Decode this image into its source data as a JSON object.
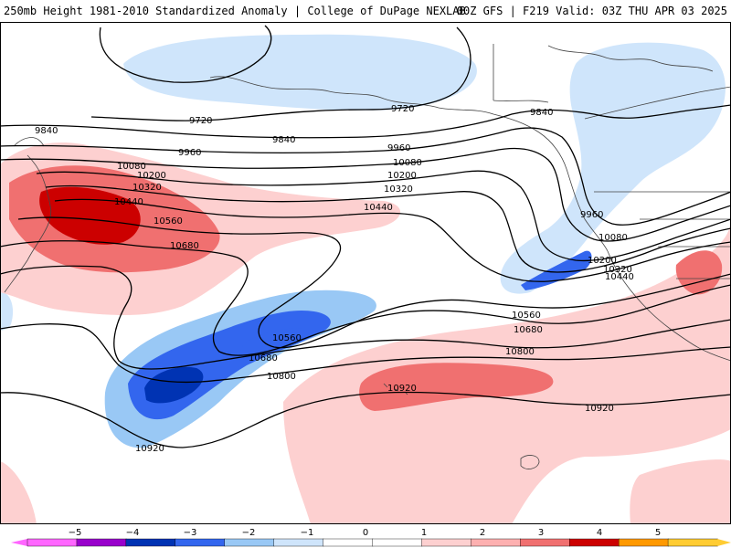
{
  "header": {
    "title_left": "250mb Height 1981-2010 Standardized Anomaly | College of DuPage NEXLAB",
    "title_right": "00Z GFS | F219 Valid: 03Z THU APR 03 2025"
  },
  "colors": {
    "neg5": "#ff66ff",
    "neg4": "#9900cc",
    "neg3": "#0033b3",
    "neg2": "#3366ee",
    "neg1": "#99c8f5",
    "neg05": "#cfe5fb",
    "pos05": "#fdd0d0",
    "pos1": "#fdb0b0",
    "pos2": "#f07070",
    "pos3": "#cc0000",
    "pos4": "#ff9900",
    "pos5": "#ffcc33",
    "contour": "#000000",
    "coast": "#333333"
  },
  "contour_labels": [
    {
      "id": "c9720a",
      "text": "9720"
    },
    {
      "id": "c9720b",
      "text": "9720"
    },
    {
      "id": "c9840a",
      "text": "9840"
    },
    {
      "id": "c9840b",
      "text": "9840"
    },
    {
      "id": "c9840c",
      "text": "9840"
    },
    {
      "id": "c9960a",
      "text": "9960"
    },
    {
      "id": "c9960b",
      "text": "9960"
    },
    {
      "id": "c9960c",
      "text": "9960"
    },
    {
      "id": "c10080a",
      "text": "10080"
    },
    {
      "id": "c10080b",
      "text": "10080"
    },
    {
      "id": "c10080c",
      "text": "10080"
    },
    {
      "id": "c10200a",
      "text": "10200"
    },
    {
      "id": "c10200b",
      "text": "10200"
    },
    {
      "id": "c10200c",
      "text": "10200"
    },
    {
      "id": "c10320a",
      "text": "10320"
    },
    {
      "id": "c10320b",
      "text": "10320"
    },
    {
      "id": "c10320c",
      "text": "10320"
    },
    {
      "id": "c10440a",
      "text": "10440"
    },
    {
      "id": "c10440b",
      "text": "10440"
    },
    {
      "id": "c10440c",
      "text": "10440"
    },
    {
      "id": "c10560a",
      "text": "10560"
    },
    {
      "id": "c10560b",
      "text": "10560"
    },
    {
      "id": "c10560c",
      "text": "10560"
    },
    {
      "id": "c10680a",
      "text": "10680"
    },
    {
      "id": "c10680b",
      "text": "10680"
    },
    {
      "id": "c10680c",
      "text": "10680"
    },
    {
      "id": "c10800a",
      "text": "10800"
    },
    {
      "id": "c10800b",
      "text": "10800"
    },
    {
      "id": "c10920a",
      "text": "10920"
    },
    {
      "id": "c10920b",
      "text": "10920"
    },
    {
      "id": "c10920c",
      "text": "10920"
    }
  ],
  "colorbar": {
    "ticks": [
      "−5",
      "−4",
      "−3",
      "−2",
      "−1",
      "0",
      "1",
      "2",
      "3",
      "4",
      "5"
    ]
  }
}
